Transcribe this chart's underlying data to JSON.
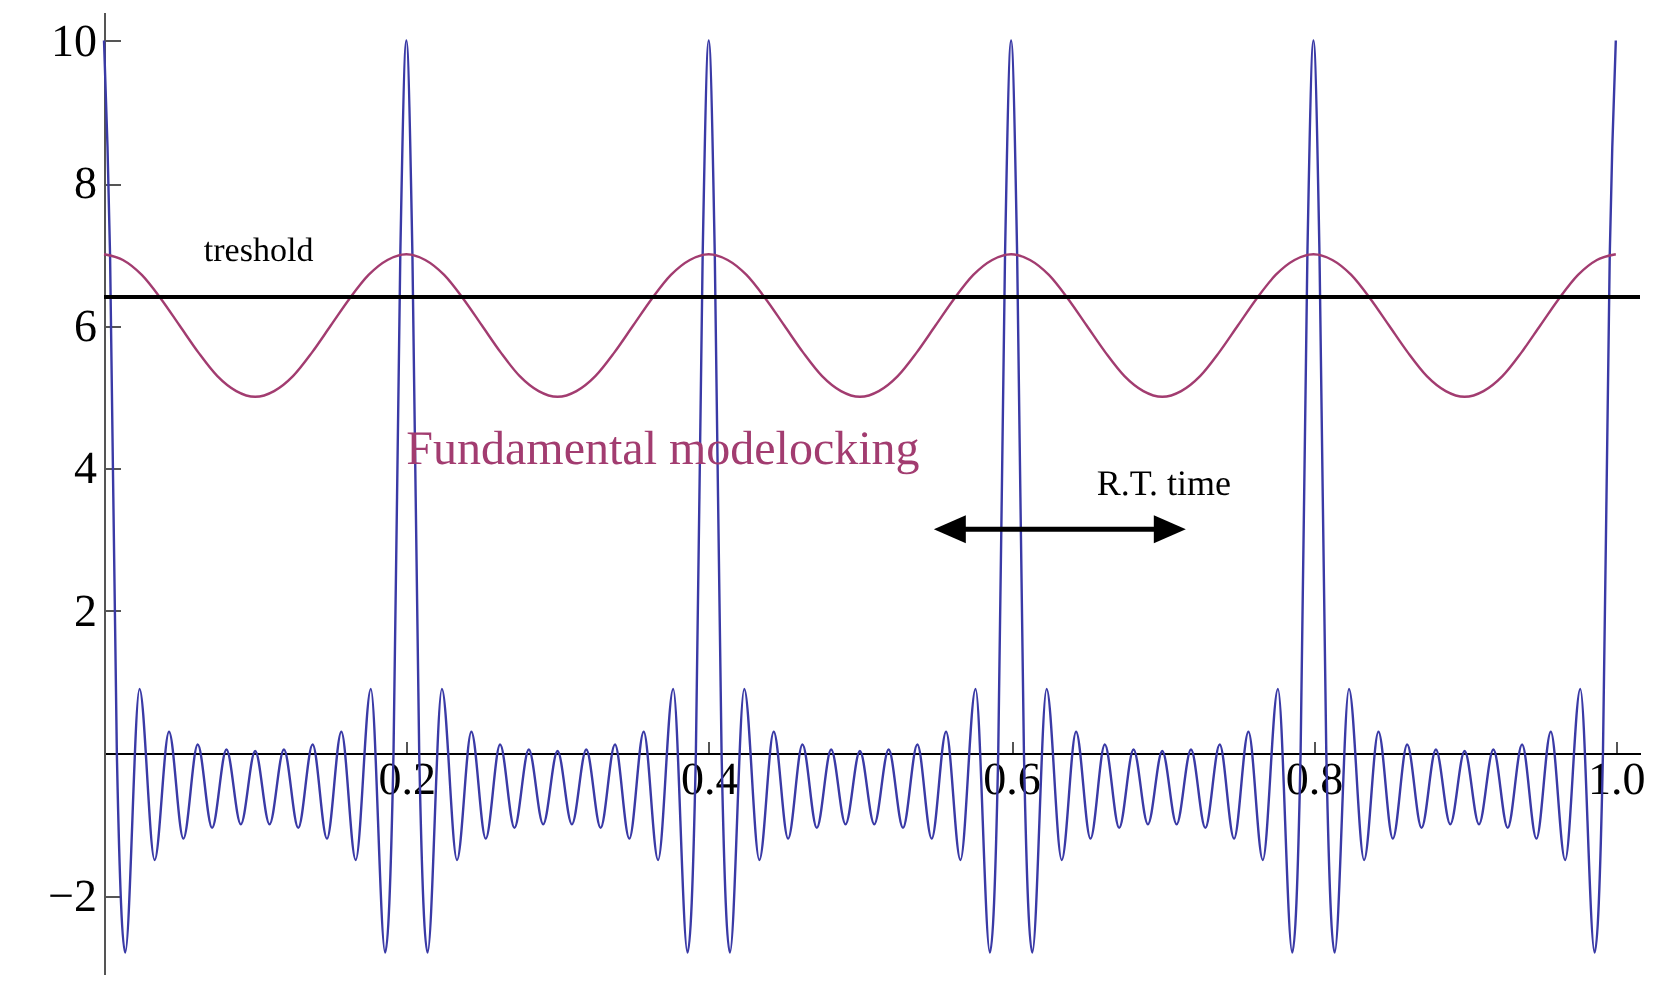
{
  "chart_data": {
    "type": "line",
    "xlim": [
      0,
      1.016
    ],
    "ylim": [
      -3.1,
      10.4
    ],
    "xticks": [
      0.2,
      0.4,
      0.6,
      0.8,
      {
        "value": 1,
        "label": "1.0"
      }
    ],
    "yticks": [
      {
        "value": -2,
        "label": "−2"
      },
      2,
      4,
      6,
      8,
      10
    ],
    "marker": "none",
    "line_style": "solid",
    "series": [
      {
        "color": "#3a3aa6",
        "x": [
          0,
          0.004,
          0.0085,
          0.014,
          0.0235,
          0.0335,
          0.043,
          0.0525,
          0.062,
          0.0715,
          0.081,
          0.0905,
          0.1,
          0.1095,
          0.119,
          0.1285,
          0.138,
          0.1475,
          0.157,
          0.1665,
          0.1765,
          0.186,
          0.1915,
          0.196,
          0.2,
          0.204,
          0.2085,
          0.214,
          0.2235,
          0.2335,
          0.243,
          0.2525,
          0.262,
          0.2715,
          0.281,
          0.2905,
          0.3,
          0.3095,
          0.319,
          0.3285,
          0.338,
          0.3475,
          0.357,
          0.3665,
          0.3765,
          0.386,
          0.3915,
          0.396,
          0.4,
          0.404,
          0.4085,
          0.414,
          0.4235,
          0.4335,
          0.443,
          0.4525,
          0.462,
          0.4715,
          0.481,
          0.4905,
          0.5,
          0.5095,
          0.519,
          0.5285,
          0.538,
          0.5475,
          0.557,
          0.5665,
          0.5765,
          0.586,
          0.5915,
          0.596,
          0.6,
          0.604,
          0.6085,
          0.614,
          0.6235,
          0.6335,
          0.643,
          0.6525,
          0.662,
          0.6715,
          0.681,
          0.6905,
          0.7,
          0.7095,
          0.719,
          0.7285,
          0.738,
          0.7475,
          0.757,
          0.7665,
          0.7765,
          0.786,
          0.7915,
          0.796,
          0.8,
          0.804,
          0.8085,
          0.814,
          0.8235,
          0.8335,
          0.843,
          0.8525,
          0.862,
          0.8715,
          0.881,
          0.8905,
          0.9,
          0.9095,
          0.919,
          0.9285,
          0.938,
          0.9475,
          0.957,
          0.9665,
          0.9765,
          0.986,
          0.9915,
          0.996,
          1
        ],
        "values": [
          10,
          7,
          0,
          -2.8,
          0.9,
          -1.5,
          0.3,
          -1.2,
          0.12,
          -1.05,
          0.05,
          -1.0,
          0.03,
          -1.0,
          0.05,
          -1.05,
          0.12,
          -1.2,
          0.3,
          -1.5,
          0.9,
          -2.8,
          0,
          7,
          10,
          7,
          0,
          -2.8,
          0.9,
          -1.5,
          0.3,
          -1.2,
          0.12,
          -1.05,
          0.05,
          -1.0,
          0.03,
          -1.0,
          0.05,
          -1.05,
          0.12,
          -1.2,
          0.3,
          -1.5,
          0.9,
          -2.8,
          0,
          7,
          10,
          7,
          0,
          -2.8,
          0.9,
          -1.5,
          0.3,
          -1.2,
          0.12,
          -1.05,
          0.05,
          -1.0,
          0.03,
          -1.0,
          0.05,
          -1.05,
          0.12,
          -1.2,
          0.3,
          -1.5,
          0.9,
          -2.8,
          0,
          7,
          10,
          7,
          0,
          -2.8,
          0.9,
          -1.5,
          0.3,
          -1.2,
          0.12,
          -1.05,
          0.05,
          -1.0,
          0.03,
          -1.0,
          0.05,
          -1.05,
          0.12,
          -1.2,
          0.3,
          -1.5,
          0.9,
          -2.8,
          0,
          7,
          10,
          7,
          0,
          -2.8,
          0.9,
          -1.5,
          0.3,
          -1.2,
          0.12,
          -1.05,
          0.05,
          -1.0,
          0.03,
          -1.0,
          0.05,
          -1.05,
          0.12,
          -1.2,
          0.3,
          -1.5,
          0.9,
          -2.8,
          0,
          7,
          10
        ]
      },
      {
        "name": "Fundamental modelocking",
        "color": "#a23c70",
        "x": [
          0,
          0.0125,
          0.025,
          0.0375,
          0.05,
          0.0625,
          0.075,
          0.0875,
          0.1,
          0.1125,
          0.125,
          0.1375,
          0.15,
          0.1625,
          0.175,
          0.1875,
          0.2,
          0.2125,
          0.225,
          0.2375,
          0.25,
          0.2625,
          0.275,
          0.2875,
          0.3,
          0.3125,
          0.325,
          0.3375,
          0.35,
          0.3625,
          0.375,
          0.3875,
          0.4,
          0.4125,
          0.425,
          0.4375,
          0.45,
          0.4625,
          0.475,
          0.4875,
          0.5,
          0.5125,
          0.525,
          0.5375,
          0.55,
          0.5625,
          0.575,
          0.5875,
          0.6,
          0.6125,
          0.625,
          0.6375,
          0.65,
          0.6625,
          0.675,
          0.6875,
          0.7,
          0.7125,
          0.725,
          0.7375,
          0.75,
          0.7625,
          0.775,
          0.7875,
          0.8,
          0.8125,
          0.825,
          0.8375,
          0.85,
          0.8625,
          0.875,
          0.8875,
          0.9,
          0.9125,
          0.925,
          0.9375,
          0.95,
          0.9625,
          0.975,
          0.9875,
          1
        ],
        "values": [
          7,
          6.92,
          6.71,
          6.38,
          6,
          5.62,
          5.29,
          5.08,
          5,
          5.08,
          5.29,
          5.62,
          6,
          6.38,
          6.71,
          6.92,
          7,
          6.92,
          6.71,
          6.38,
          6,
          5.62,
          5.29,
          5.08,
          5,
          5.08,
          5.29,
          5.62,
          6,
          6.38,
          6.71,
          6.92,
          7,
          6.92,
          6.71,
          6.38,
          6,
          5.62,
          5.29,
          5.08,
          5,
          5.08,
          5.29,
          5.62,
          6,
          6.38,
          6.71,
          6.92,
          7,
          6.92,
          6.71,
          6.38,
          6,
          5.62,
          5.29,
          5.08,
          5,
          5.08,
          5.29,
          5.62,
          6,
          6.38,
          6.71,
          6.92,
          7,
          6.92,
          6.71,
          6.38,
          6,
          5.62,
          5.29,
          5.08,
          5,
          5.08,
          5.29,
          5.62,
          6,
          6.38,
          6.71,
          6.92,
          7
        ]
      }
    ],
    "ref_lines": [
      {
        "axis": "y",
        "value": 6.4,
        "label": "treshold",
        "color": "#000000"
      }
    ],
    "annotations": [
      "R.T. time"
    ]
  }
}
